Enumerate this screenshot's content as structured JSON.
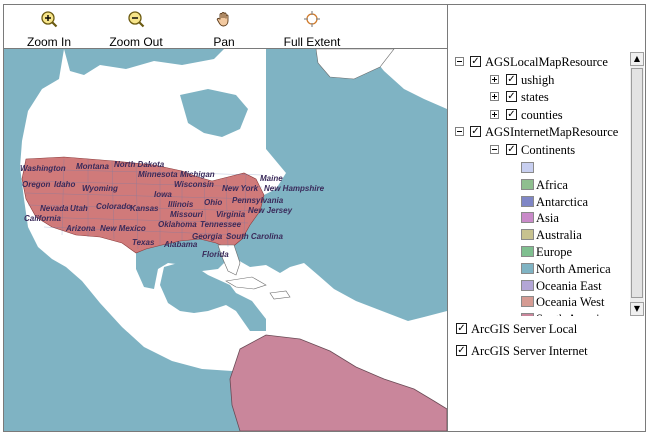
{
  "toolbar": {
    "tools": [
      {
        "label": "Zoom In",
        "icon": "zoom-in-icon"
      },
      {
        "label": "Zoom Out",
        "icon": "zoom-out-icon"
      },
      {
        "label": "Pan",
        "icon": "pan-hand-icon"
      },
      {
        "label": "Full Extent",
        "icon": "full-extent-icon"
      }
    ]
  },
  "map": {
    "ocean_color": "#7fb3c3",
    "land_color": "#ffffff",
    "south_america_color": "#c9869b",
    "us_states_color": "#d07a7a",
    "labels": [
      "Washington",
      "Montana",
      "North Dakota",
      "Minnesota",
      "Michigan",
      "Maine",
      "Oregon",
      "Idaho",
      "Wyoming",
      "Iowa",
      "Wisconsin",
      "New York",
      "New Hampshire",
      "Nevada",
      "Utah",
      "Colorado",
      "Kansas",
      "Illinois",
      "Ohio",
      "Pennsylvania",
      "California",
      "Missouri",
      "Virginia",
      "New Jersey",
      "Arizona",
      "New Mexico",
      "Oklahoma",
      "Tennessee",
      "Texas",
      "Alabama",
      "Georgia",
      "South Carolina",
      "Florida"
    ]
  },
  "toc": {
    "resources": [
      {
        "label": "AGSLocalMapResource",
        "checked": true,
        "layers": [
          {
            "label": "ushigh",
            "checked": true
          },
          {
            "label": "states",
            "checked": true
          },
          {
            "label": "counties",
            "checked": true
          }
        ]
      },
      {
        "label": "AGSInternetMapResource",
        "checked": true,
        "layers": [
          {
            "label": "Continents",
            "checked": true,
            "legend": [
              {
                "label": "",
                "color": "#c8cff0"
              },
              {
                "label": "Africa",
                "color": "#8fbf8f"
              },
              {
                "label": "Antarctica",
                "color": "#7f86c6"
              },
              {
                "label": "Asia",
                "color": "#c98ac9"
              },
              {
                "label": "Australia",
                "color": "#c7c28f"
              },
              {
                "label": "Europe",
                "color": "#7fbf8f"
              },
              {
                "label": "North America",
                "color": "#7fb3c3"
              },
              {
                "label": "Oceania East",
                "color": "#b3a6d6"
              },
              {
                "label": "Oceania West",
                "color": "#d59b93"
              },
              {
                "label": "South America",
                "color": "#c9869b"
              }
            ]
          }
        ]
      }
    ]
  },
  "resource_manager": [
    {
      "label": "ArcGIS Server Local",
      "checked": true
    },
    {
      "label": "ArcGIS Server Internet",
      "checked": true
    }
  ]
}
